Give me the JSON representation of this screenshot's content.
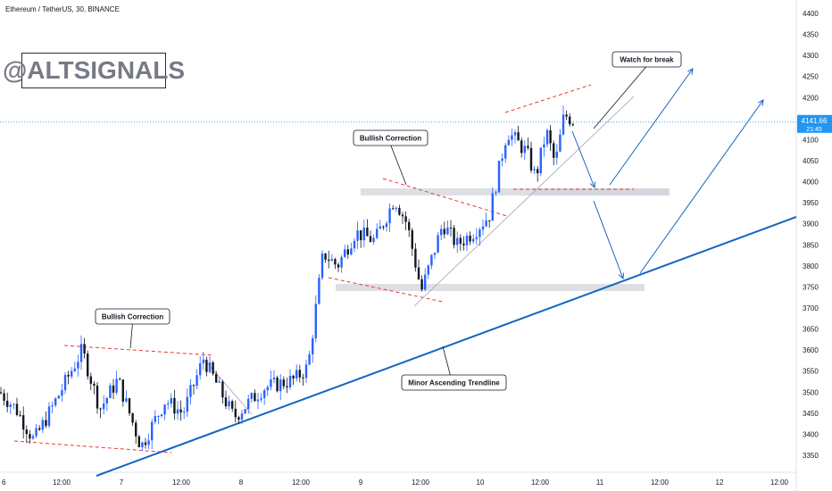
{
  "title": "Ethereum / TetherUS, 30, BINANCE",
  "watermark": "@ALTSIGNALS",
  "colors": {
    "up": "#2962ff",
    "down": "#131722",
    "resistance": "#e53935",
    "trend": "#1565c0",
    "zone": "#d1d4dc",
    "price_tag": "#2196f3"
  },
  "price_label": {
    "value": "4141.66",
    "timer": "21:45"
  },
  "callouts": {
    "bullish_correction_1": "Bullish Correction",
    "bullish_correction_2": "Bullish Correction",
    "watch_for_break": "Watch for break",
    "minor_trendline": "Minor Ascending Trendline"
  },
  "chart_data": {
    "type": "candlestick",
    "title": "Ethereum / TetherUS, 30, BINANCE",
    "xlabel": "",
    "ylabel": "",
    "ylim": [
      3320,
      4420
    ],
    "y_ticks": [
      3350,
      3400,
      3450,
      3500,
      3550,
      3600,
      3650,
      3700,
      3750,
      3800,
      3850,
      3900,
      3950,
      4000,
      4050,
      4100,
      4150,
      4200,
      4250,
      4300,
      4350,
      4400
    ],
    "x_tick_labels": [
      "6",
      "12:00",
      "7",
      "12:00",
      "8",
      "12:00",
      "9",
      "12:00",
      "10",
      "12:00",
      "11",
      "12:00",
      "12",
      "12:00"
    ],
    "last_price": 4141.66,
    "grid": false,
    "price_path": [
      [
        0,
        3500
      ],
      [
        18,
        3460
      ],
      [
        38,
        3385
      ],
      [
        60,
        3470
      ],
      [
        92,
        3600
      ],
      [
        112,
        3460
      ],
      [
        132,
        3530
      ],
      [
        158,
        3370
      ],
      [
        185,
        3480
      ],
      [
        205,
        3450
      ],
      [
        228,
        3580
      ],
      [
        262,
        3440
      ],
      [
        295,
        3510
      ],
      [
        330,
        3530
      ],
      [
        345,
        3560
      ],
      [
        362,
        3830
      ],
      [
        378,
        3800
      ],
      [
        398,
        3880
      ],
      [
        420,
        3860
      ],
      [
        442,
        3960
      ],
      [
        456,
        3900
      ],
      [
        472,
        3740
      ],
      [
        496,
        3900
      ],
      [
        512,
        3850
      ],
      [
        530,
        3880
      ],
      [
        548,
        3920
      ],
      [
        568,
        4120
      ],
      [
        590,
        4070
      ],
      [
        600,
        4010
      ],
      [
        612,
        4120
      ],
      [
        622,
        4040
      ],
      [
        632,
        4160
      ],
      [
        645,
        4140
      ]
    ],
    "annotations": [
      "Bullish Correction",
      "Bullish Correction",
      "Watch for break",
      "Minor Ascending Trendline"
    ]
  }
}
